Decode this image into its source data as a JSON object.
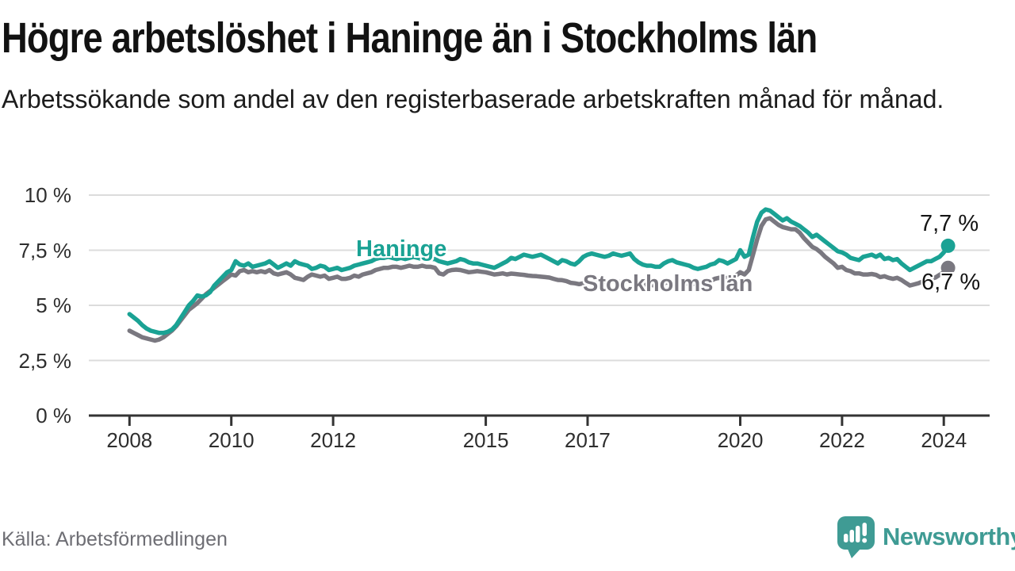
{
  "header": {
    "title": "Högre arbetslöshet i Haninge än i Stockholms län",
    "subtitle": "Arbetssökande som andel av den registerbaserade arbetskraften månad för månad."
  },
  "footer": {
    "source": "Källa: Arbetsförmedlingen",
    "brand": "Newsworthy"
  },
  "colors": {
    "haninge": "#1AA294",
    "stockholm": "#7A7880",
    "grid": "#DCDCDC",
    "axis": "#333333",
    "text": "#121212",
    "muted_text": "#6e6e74",
    "brand_teal": "#3F9B94"
  },
  "chart_data": {
    "type": "line",
    "unit": "%",
    "frequency": "monthly",
    "x_start": {
      "year": 2008,
      "month": 1
    },
    "x_end": {
      "year": 2024,
      "month": 2
    },
    "xlim": [
      2007.2,
      2024.9
    ],
    "ylim": [
      0,
      10
    ],
    "grid": true,
    "y_ticks": [
      {
        "value": 0,
        "label": "0 %"
      },
      {
        "value": 2.5,
        "label": "2,5 %"
      },
      {
        "value": 5,
        "label": "5 %"
      },
      {
        "value": 7.5,
        "label": "7,5 %"
      },
      {
        "value": 10,
        "label": "10 %"
      }
    ],
    "x_ticks": [
      {
        "value": 2008,
        "label": "2008"
      },
      {
        "value": 2010,
        "label": "2010"
      },
      {
        "value": 2012,
        "label": "2012"
      },
      {
        "value": 2015,
        "label": "2015"
      },
      {
        "value": 2017,
        "label": "2017"
      },
      {
        "value": 2020,
        "label": "2020"
      },
      {
        "value": 2022,
        "label": "2022"
      },
      {
        "value": 2024,
        "label": "2024"
      }
    ],
    "series": [
      {
        "name": "Haninge",
        "color": "#1AA294",
        "end_label": "7,7 %",
        "end_value": 7.7,
        "values": [
          4.6,
          4.45,
          4.3,
          4.1,
          3.95,
          3.85,
          3.8,
          3.75,
          3.75,
          3.8,
          3.9,
          4.1,
          4.4,
          4.7,
          5.0,
          5.2,
          5.45,
          5.4,
          5.45,
          5.6,
          5.9,
          6.1,
          6.3,
          6.5,
          6.6,
          7.0,
          6.85,
          6.8,
          6.9,
          6.75,
          6.8,
          6.85,
          6.9,
          7.0,
          6.85,
          6.7,
          6.8,
          6.9,
          6.8,
          7.0,
          6.9,
          6.85,
          6.8,
          6.65,
          6.7,
          6.8,
          6.75,
          6.6,
          6.65,
          6.7,
          6.6,
          6.65,
          6.7,
          6.8,
          6.85,
          6.9,
          6.95,
          7.0,
          7.1,
          7.15,
          7.15,
          7.2,
          7.15,
          7.1,
          7.15,
          7.1,
          7.15,
          7.2,
          7.15,
          7.1,
          7.15,
          7.1,
          7.1,
          7.0,
          6.95,
          6.9,
          6.95,
          7.0,
          7.1,
          7.05,
          6.95,
          6.9,
          6.9,
          6.85,
          6.8,
          6.75,
          6.7,
          6.8,
          6.9,
          7.0,
          7.15,
          7.1,
          7.2,
          7.3,
          7.25,
          7.2,
          7.25,
          7.3,
          7.2,
          7.1,
          7.0,
          6.9,
          7.05,
          7.0,
          6.9,
          6.85,
          7.0,
          7.2,
          7.3,
          7.35,
          7.3,
          7.25,
          7.2,
          7.25,
          7.35,
          7.3,
          7.25,
          7.3,
          7.35,
          7.1,
          6.95,
          6.85,
          6.8,
          6.8,
          6.75,
          6.75,
          6.9,
          7.0,
          7.05,
          6.95,
          6.9,
          6.85,
          6.8,
          6.7,
          6.65,
          6.7,
          6.75,
          6.85,
          6.9,
          7.05,
          7.0,
          6.9,
          7.0,
          7.1,
          7.5,
          7.2,
          7.3,
          8.1,
          8.8,
          9.2,
          9.35,
          9.3,
          9.15,
          9.0,
          8.85,
          8.95,
          8.8,
          8.7,
          8.6,
          8.45,
          8.3,
          8.1,
          8.2,
          8.05,
          7.9,
          7.75,
          7.6,
          7.45,
          7.4,
          7.3,
          7.15,
          7.1,
          7.05,
          7.2,
          7.25,
          7.3,
          7.2,
          7.3,
          7.1,
          7.15,
          7.05,
          7.1,
          6.9,
          6.75,
          6.6,
          6.7,
          6.8,
          6.9,
          7.0,
          7.0,
          7.1,
          7.2,
          7.4,
          7.7
        ]
      },
      {
        "name": "Stockholms län",
        "color": "#7A7880",
        "end_label": "6,7 %",
        "end_value": 6.7,
        "values": [
          3.85,
          3.75,
          3.65,
          3.55,
          3.5,
          3.45,
          3.4,
          3.45,
          3.55,
          3.7,
          3.85,
          4.05,
          4.3,
          4.55,
          4.8,
          4.95,
          5.1,
          5.3,
          5.5,
          5.65,
          5.8,
          5.95,
          6.1,
          6.25,
          6.4,
          6.35,
          6.55,
          6.6,
          6.5,
          6.55,
          6.5,
          6.55,
          6.5,
          6.6,
          6.45,
          6.4,
          6.45,
          6.5,
          6.4,
          6.25,
          6.2,
          6.15,
          6.3,
          6.4,
          6.35,
          6.3,
          6.35,
          6.2,
          6.25,
          6.3,
          6.2,
          6.2,
          6.25,
          6.35,
          6.3,
          6.4,
          6.45,
          6.5,
          6.6,
          6.65,
          6.7,
          6.7,
          6.75,
          6.75,
          6.7,
          6.75,
          6.8,
          6.75,
          6.75,
          6.8,
          6.75,
          6.75,
          6.7,
          6.45,
          6.4,
          6.55,
          6.6,
          6.62,
          6.6,
          6.55,
          6.5,
          6.52,
          6.55,
          6.52,
          6.5,
          6.45,
          6.4,
          6.42,
          6.45,
          6.4,
          6.44,
          6.42,
          6.4,
          6.38,
          6.35,
          6.33,
          6.32,
          6.3,
          6.28,
          6.26,
          6.2,
          6.15,
          6.14,
          6.1,
          6.02,
          6.0,
          5.96,
          6.0,
          6.0,
          6.02,
          6.05,
          6.08,
          6.05,
          6.08,
          6.1,
          6.08,
          6.05,
          6.08,
          6.1,
          6.05,
          6.0,
          5.95,
          5.9,
          5.92,
          5.9,
          5.95,
          6.0,
          6.05,
          6.0,
          5.95,
          5.98,
          6.0,
          6.0,
          5.98,
          5.95,
          6.0,
          6.05,
          6.1,
          6.2,
          6.25,
          6.2,
          6.25,
          6.3,
          6.35,
          6.5,
          6.4,
          6.6,
          7.3,
          8.0,
          8.6,
          8.9,
          8.95,
          8.8,
          8.65,
          8.55,
          8.5,
          8.45,
          8.45,
          8.3,
          8.05,
          7.85,
          7.65,
          7.55,
          7.4,
          7.2,
          7.05,
          6.9,
          6.7,
          6.75,
          6.6,
          6.55,
          6.45,
          6.45,
          6.4,
          6.4,
          6.42,
          6.38,
          6.28,
          6.32,
          6.25,
          6.2,
          6.25,
          6.15,
          6.02,
          5.9,
          5.95,
          6.0,
          6.08,
          6.15,
          6.2,
          6.26,
          6.38,
          6.5,
          6.7
        ]
      }
    ]
  }
}
